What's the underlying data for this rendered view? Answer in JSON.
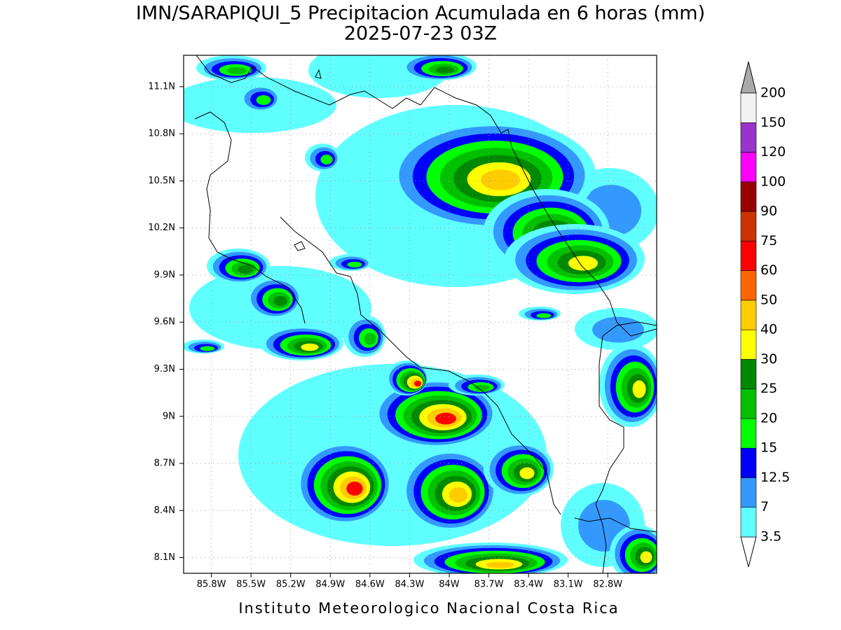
{
  "title": "IMN/SARAPIQUI_5 Precipitacion Acumulada en 6 horas (mm)",
  "subtitle": "2025-07-23 03Z",
  "map": {
    "xlim": [
      -86.01,
      -82.43
    ],
    "ylim": [
      8.0,
      11.3
    ],
    "xticks": [
      {
        "value": -85.8,
        "label": "85.8W"
      },
      {
        "value": -85.5,
        "label": "85.5W"
      },
      {
        "value": -85.2,
        "label": "85.2W"
      },
      {
        "value": -84.9,
        "label": "84.9W"
      },
      {
        "value": -84.6,
        "label": "84.6W"
      },
      {
        "value": -84.3,
        "label": "84.3W"
      },
      {
        "value": -84.0,
        "label": "84W"
      },
      {
        "value": -83.7,
        "label": "83.7W"
      },
      {
        "value": -83.4,
        "label": "83.4W"
      },
      {
        "value": -83.1,
        "label": "83.1W"
      },
      {
        "value": -82.8,
        "label": "82.8W"
      }
    ],
    "yticks": [
      {
        "value": 8.1,
        "label": "8.1N"
      },
      {
        "value": 8.4,
        "label": "8.4N"
      },
      {
        "value": 8.7,
        "label": "8.7N"
      },
      {
        "value": 9.0,
        "label": "9N"
      },
      {
        "value": 9.3,
        "label": "9.3N"
      },
      {
        "value": 9.6,
        "label": "9.6N"
      },
      {
        "value": 9.9,
        "label": "9.9N"
      },
      {
        "value": 10.2,
        "label": "10.2N"
      },
      {
        "value": 10.5,
        "label": "10.5N"
      },
      {
        "value": 10.8,
        "label": "10.8N"
      },
      {
        "value": 11.1,
        "label": "11.1N"
      }
    ],
    "grid": true
  },
  "colorbar": {
    "levels": [
      3.5,
      7,
      12.5,
      15,
      20,
      25,
      30,
      40,
      50,
      60,
      75,
      90,
      100,
      120,
      150,
      200
    ],
    "colors": [
      "#60ffff",
      "#3399ff",
      "#0000ff",
      "#00ff00",
      "#00c000",
      "#008800",
      "#ffff00",
      "#ffcc00",
      "#ff6600",
      "#ff0000",
      "#cc3300",
      "#990000",
      "#ff00ff",
      "#9933cc",
      "#f2f2f2"
    ],
    "under_color": "#ffffff",
    "over_color": "#aaaaaa"
  },
  "footer": "Instituto Meteorologico Nacional Costa Rica"
}
